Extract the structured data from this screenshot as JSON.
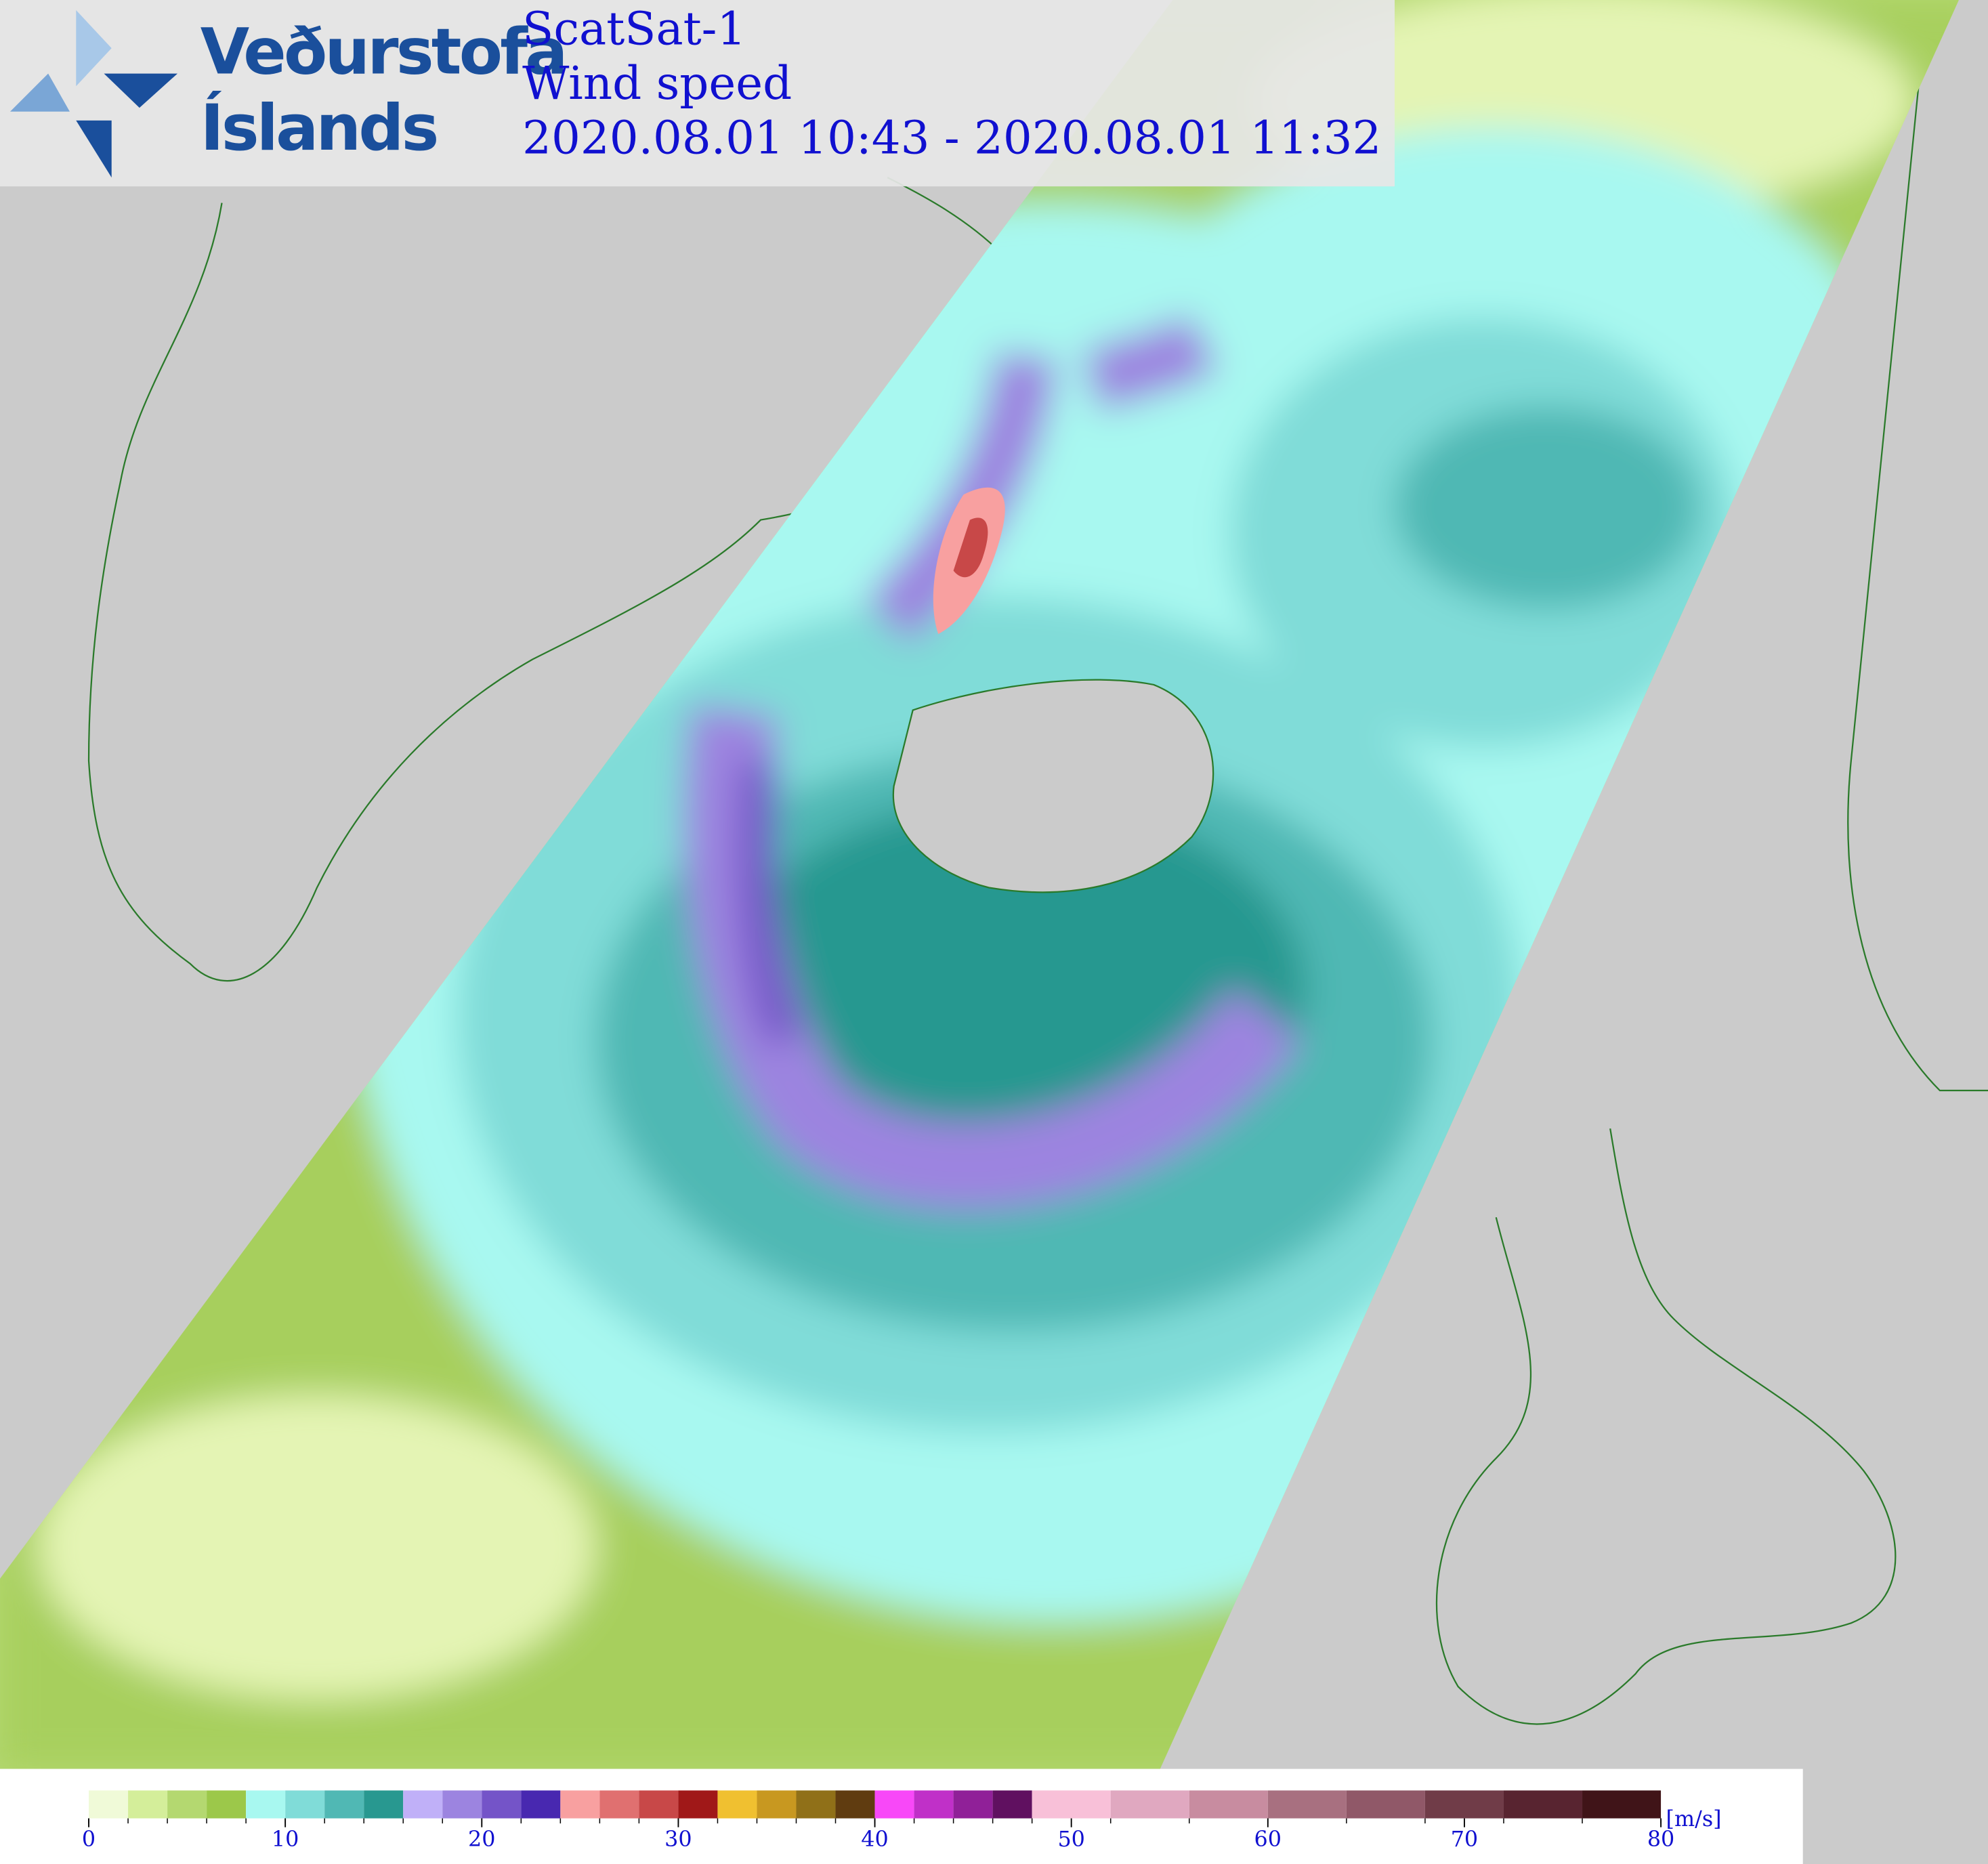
{
  "header": {
    "logo_line1": "Veðurstofa",
    "logo_line2": "Íslands",
    "title": "ScatSat-1",
    "subtitle": "Wind speed",
    "time_range": "2020.08.01 10:43 - 2020.08.01 11:32"
  },
  "colorbar": {
    "levels": [
      0,
      2,
      4,
      6,
      8,
      10,
      12,
      14,
      16,
      18,
      20,
      22,
      24,
      26,
      28,
      30,
      32,
      34,
      36,
      38,
      40,
      42,
      44,
      46,
      48,
      52,
      56,
      60,
      64,
      68,
      72,
      76,
      80
    ],
    "colors": [
      "#f0fad8",
      "#d4ee9a",
      "#b4d870",
      "#9cc84a",
      "#a8f8f0",
      "#80dcd8",
      "#50b8b4",
      "#289890",
      "#c0b0f8",
      "#9c84e0",
      "#7454c8",
      "#4828b0",
      "#f8a0a0",
      "#e07070",
      "#c84848",
      "#a01818",
      "#f0c030",
      "#c89820",
      "#907018",
      "#603c10",
      "#f848f8",
      "#c030c8",
      "#902098",
      "#601060",
      "#f8c0d8",
      "#e0a8c0",
      "#c88ca0",
      "#a87080",
      "#905868",
      "#703c48",
      "#582430",
      "#401418"
    ],
    "ticks": [
      0,
      10,
      20,
      30,
      40,
      50,
      60,
      70,
      80
    ],
    "unit": "[m/s]"
  }
}
